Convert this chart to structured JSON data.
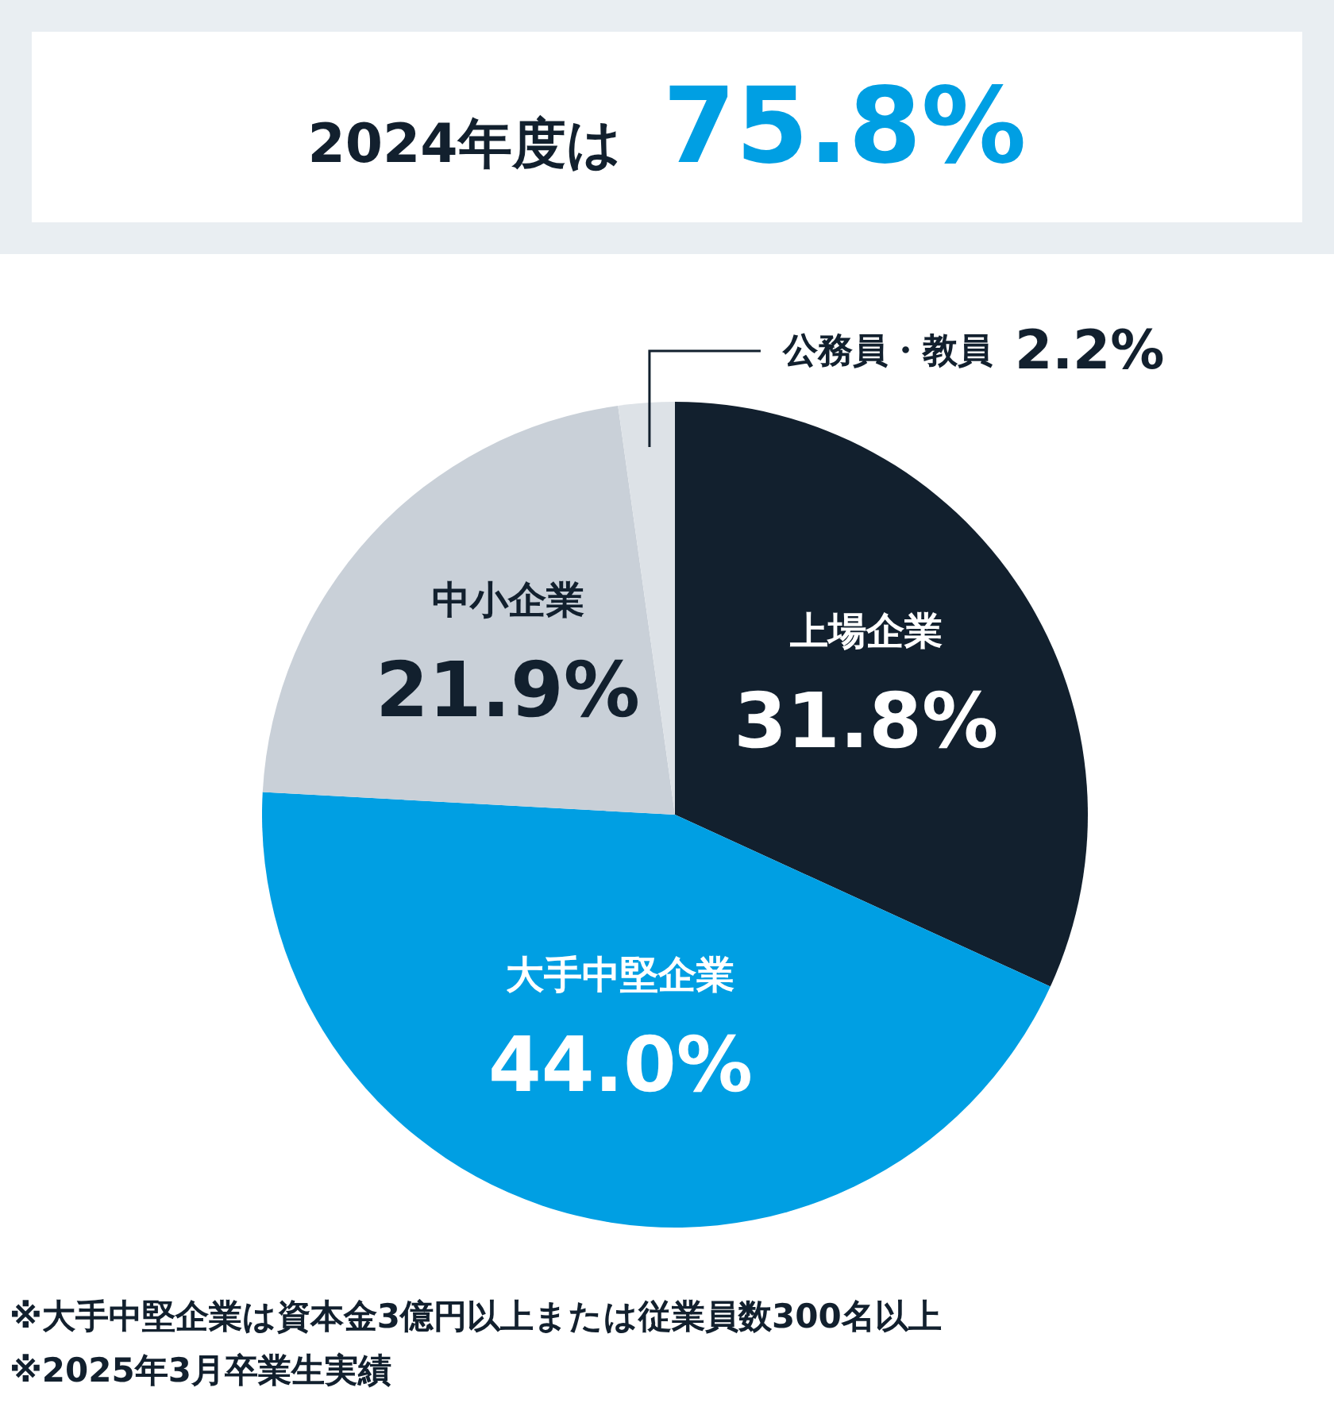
{
  "chart_data": {
    "type": "pie",
    "title": "2024年度は",
    "subtitle": "75.8%",
    "categories": [
      "上場企業",
      "大手中堅企業",
      "中小企業",
      "公務員・教員"
    ],
    "values": [
      31.8,
      44.0,
      21.9,
      2.2
    ],
    "colors": [
      "#12202e",
      "#009fe3",
      "#c9d0d8",
      "#dde2e7"
    ],
    "value_labels": [
      "31.8%",
      "44.0%",
      "21.9%",
      "2.2%"
    ],
    "legend": false,
    "annotations": [
      "※大手中堅企業は資本金3億円以上または従業員数300名以上",
      "※2025年3月卒業生実績"
    ]
  }
}
